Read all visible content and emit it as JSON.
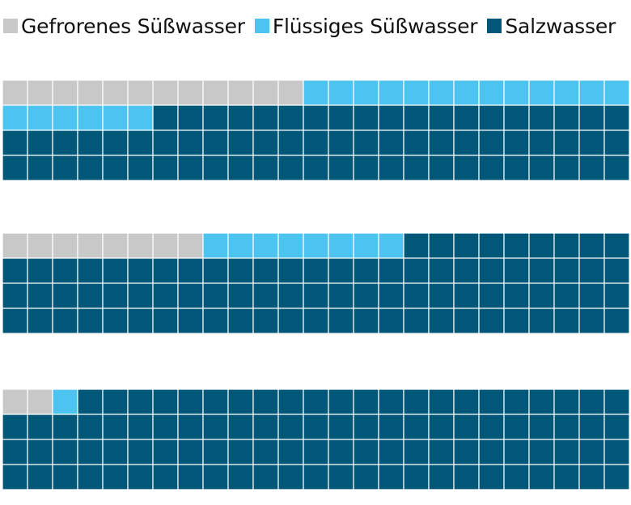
{
  "legend": {
    "items": [
      {
        "label": "Gefrorenes Süßwasser",
        "color": "#c8c8c8"
      },
      {
        "label": "Flüssiges Süßwasser",
        "color": "#4dc4f0"
      },
      {
        "label": "Salzwasser",
        "color": "#005777"
      }
    ]
  },
  "chart_data": {
    "type": "waffle",
    "columns": 25,
    "rows_per_block": 4,
    "legend_placement": "top",
    "series": [
      {
        "name": "Gefrorenes Süßwasser",
        "color": "#c8c8c8"
      },
      {
        "name": "Flüssiges Süßwasser",
        "color": "#4dc4f0"
      },
      {
        "name": "Salzwasser",
        "color": "#005777"
      }
    ],
    "blocks": [
      {
        "counts": [
          12,
          19,
          69
        ]
      },
      {
        "counts": [
          8,
          8,
          84
        ]
      },
      {
        "counts": [
          2,
          1,
          97
        ]
      }
    ]
  }
}
